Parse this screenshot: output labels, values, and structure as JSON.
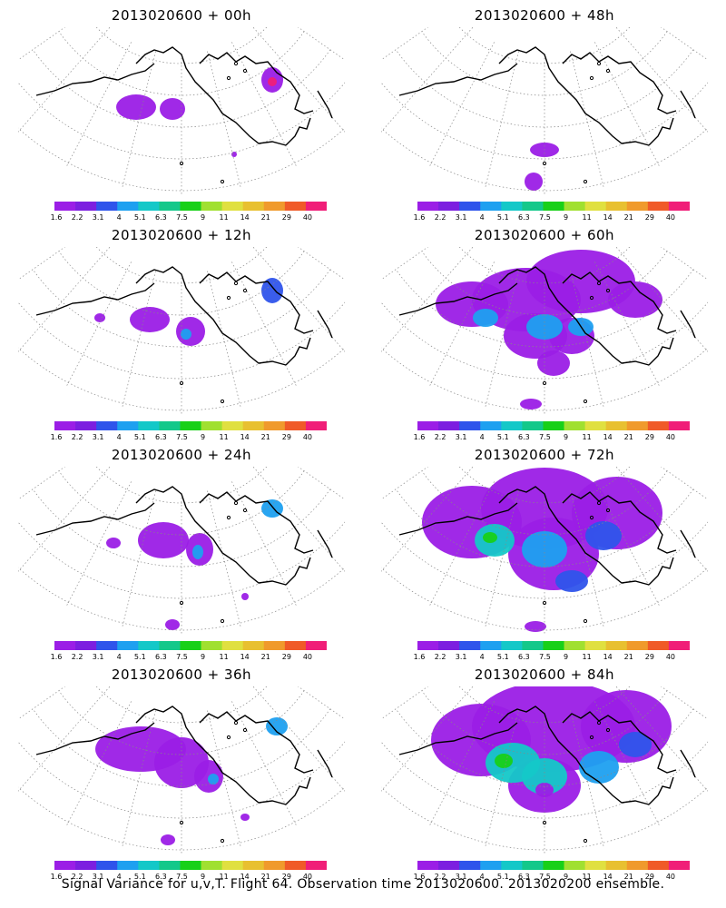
{
  "chart_data": {
    "type": "contour-map",
    "footer_title": "Signal Variance for u,v,T. Flight 64. Observation time 2013020600. 2013020200 ensemble.",
    "colorbar": {
      "labels": [
        "1.6",
        "2.2",
        "3.1",
        "4",
        "5.1",
        "6.3",
        "7.5",
        "9",
        "11",
        "14",
        "21",
        "29",
        "40"
      ],
      "colors": [
        "#9b1ee6",
        "#7c1fe0",
        "#2f54eb",
        "#1ea0f0",
        "#14c8c8",
        "#14c88a",
        "#18d018",
        "#a0e030",
        "#e0e040",
        "#e8c030",
        "#f09a2c",
        "#f05a28",
        "#f01e78"
      ]
    },
    "panels": [
      {
        "title": "2013020600 + 00h",
        "blobs": [
          [
            150,
            118,
            22,
            14,
            0
          ],
          [
            190,
            120,
            14,
            12,
            0
          ],
          [
            300,
            88,
            12,
            14,
            0
          ],
          [
            300,
            90,
            5,
            5,
            12
          ],
          [
            258,
            170,
            3,
            3,
            0
          ]
        ]
      },
      {
        "title": "2013020600 + 48h",
        "blobs": [
          [
            200,
            120,
            60,
            18,
            0
          ],
          [
            280,
            110,
            55,
            30,
            0
          ],
          [
            340,
            100,
            50,
            35,
            0
          ],
          [
            360,
            90,
            45,
            30,
            0
          ],
          [
            290,
            100,
            20,
            15,
            3
          ],
          [
            330,
            110,
            25,
            14,
            3
          ],
          [
            295,
            130,
            28,
            14,
            2
          ],
          [
            600,
            165,
            16,
            8,
            0
          ],
          [
            588,
            200,
            10,
            10,
            0
          ]
        ]
      },
      {
        "title": "2013020600 + 12h",
        "blobs": [
          [
            165,
            352,
            22,
            14,
            0
          ],
          [
            210,
            365,
            16,
            16,
            0
          ],
          [
            205,
            368,
            6,
            6,
            3
          ],
          [
            300,
            320,
            12,
            14,
            2
          ],
          [
            110,
            350,
            6,
            5,
            0
          ]
        ]
      },
      {
        "title": "2013020600 + 60h",
        "blobs": [
          [
            520,
            335,
            40,
            25,
            0
          ],
          [
            580,
            330,
            60,
            35,
            0
          ],
          [
            640,
            310,
            60,
            35,
            0
          ],
          [
            700,
            330,
            30,
            20,
            0
          ],
          [
            590,
            370,
            35,
            25,
            0
          ],
          [
            630,
            370,
            25,
            20,
            0
          ],
          [
            610,
            400,
            18,
            14,
            0
          ],
          [
            535,
            350,
            14,
            10,
            3
          ],
          [
            600,
            360,
            20,
            14,
            3
          ],
          [
            640,
            360,
            14,
            10,
            3
          ],
          [
            585,
            445,
            12,
            6,
            0
          ]
        ]
      },
      {
        "title": "2013020600 + 24h",
        "blobs": [
          [
            180,
            595,
            28,
            20,
            0
          ],
          [
            220,
            605,
            15,
            18,
            0
          ],
          [
            218,
            608,
            6,
            8,
            3
          ],
          [
            125,
            598,
            8,
            6,
            0
          ],
          [
            300,
            560,
            12,
            10,
            3
          ],
          [
            190,
            688,
            8,
            6,
            0
          ],
          [
            270,
            657,
            4,
            4,
            0
          ]
        ]
      },
      {
        "title": "2013020600 + 72h",
        "blobs": [
          [
            520,
            575,
            55,
            40,
            0
          ],
          [
            600,
            560,
            70,
            45,
            0
          ],
          [
            680,
            565,
            50,
            40,
            0
          ],
          [
            610,
            610,
            50,
            40,
            0
          ],
          [
            545,
            595,
            22,
            18,
            4
          ],
          [
            540,
            592,
            8,
            6,
            6
          ],
          [
            600,
            605,
            25,
            20,
            3
          ],
          [
            665,
            590,
            20,
            16,
            2
          ],
          [
            630,
            640,
            18,
            12,
            2
          ],
          [
            590,
            690,
            12,
            6,
            0
          ]
        ]
      },
      {
        "title": "2013020600 + 84h",
        "blobs": [
          [
            530,
            815,
            55,
            40,
            0
          ],
          [
            610,
            800,
            90,
            50,
            0
          ],
          [
            690,
            800,
            50,
            40,
            0
          ],
          [
            600,
            865,
            40,
            30,
            0
          ],
          [
            565,
            840,
            30,
            22,
            4
          ],
          [
            555,
            838,
            10,
            8,
            6
          ],
          [
            600,
            855,
            25,
            20,
            4
          ],
          [
            660,
            845,
            22,
            18,
            3
          ],
          [
            700,
            820,
            18,
            14,
            2
          ],
          [
            600,
            870,
            10,
            8,
            0
          ]
        ]
      },
      {
        "title": "2013020600 + 36h",
        "blobs": [
          [
            155,
            825,
            50,
            25,
            0
          ],
          [
            200,
            840,
            30,
            28,
            0
          ],
          [
            230,
            855,
            16,
            18,
            0
          ],
          [
            235,
            858,
            6,
            6,
            3
          ],
          [
            305,
            800,
            12,
            10,
            3
          ],
          [
            185,
            925,
            8,
            6,
            0
          ],
          [
            270,
            900,
            5,
            4,
            0
          ]
        ]
      }
    ]
  }
}
